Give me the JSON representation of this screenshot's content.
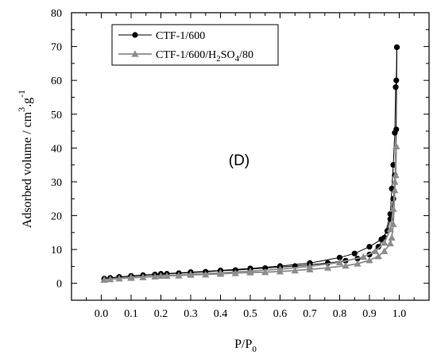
{
  "chart_data": {
    "type": "line",
    "panel_label": "(D)",
    "xlabel": {
      "main": "P/P",
      "sub": "0"
    },
    "ylabel": {
      "main": "Adsorbed volume / cm",
      "sup1": "3",
      "mid": ".g",
      "sup2": "-1"
    },
    "xlim": [
      -0.1,
      1.1
    ],
    "ylim": [
      -5,
      80
    ],
    "x_ticks": [
      0.0,
      0.1,
      0.2,
      0.3,
      0.4,
      0.5,
      0.6,
      0.7,
      0.8,
      0.9,
      1.0
    ],
    "x_tick_labels": [
      "0.0",
      "0.1",
      "0.2",
      "0.3",
      "0.4",
      "0.5",
      "0.6",
      "0.7",
      "0.8",
      "0.9",
      "1.0"
    ],
    "y_ticks": [
      0,
      10,
      20,
      30,
      40,
      50,
      60,
      70,
      80
    ],
    "y_tick_labels": [
      "0",
      "10",
      "20",
      "30",
      "40",
      "50",
      "60",
      "70",
      "80"
    ],
    "grid": false,
    "legend_position": "top-left",
    "legend": [
      {
        "parts": [
          {
            "t": "CTF-1/600"
          }
        ]
      },
      {
        "parts": [
          {
            "t": "CTF-1/600/H"
          },
          {
            "t": "2",
            "sub": true
          },
          {
            "t": "SO"
          },
          {
            "t": "4",
            "sub": true
          },
          {
            "t": "/80"
          }
        ]
      }
    ],
    "series": [
      {
        "marker": "circle",
        "color": "#000000",
        "adsorption": [
          [
            0.01,
            1.3
          ],
          [
            0.03,
            1.6
          ],
          [
            0.06,
            1.9
          ],
          [
            0.1,
            2.1
          ],
          [
            0.14,
            2.4
          ],
          [
            0.18,
            2.6
          ],
          [
            0.22,
            2.8
          ],
          [
            0.26,
            3.0
          ],
          [
            0.3,
            3.2
          ],
          [
            0.35,
            3.4
          ],
          [
            0.4,
            3.7
          ],
          [
            0.45,
            3.9
          ],
          [
            0.5,
            4.2
          ],
          [
            0.55,
            4.5
          ],
          [
            0.6,
            4.8
          ],
          [
            0.65,
            5.1
          ],
          [
            0.7,
            5.5
          ],
          [
            0.76,
            6.0
          ],
          [
            0.82,
            6.7
          ],
          [
            0.86,
            7.3
          ],
          [
            0.9,
            8.5
          ],
          [
            0.93,
            10.8
          ],
          [
            0.95,
            13.5
          ],
          [
            0.97,
            20.5
          ],
          [
            0.975,
            28.0
          ],
          [
            0.98,
            35.0
          ],
          [
            0.985,
            44.5
          ],
          [
            0.988,
            58.0
          ],
          [
            0.99,
            60.0
          ],
          [
            0.992,
            69.8
          ]
        ],
        "desorption": [
          [
            0.992,
            69.8
          ],
          [
            0.99,
            45.5
          ],
          [
            0.985,
            32.0
          ],
          [
            0.98,
            25.0
          ],
          [
            0.97,
            19.0
          ],
          [
            0.96,
            15.5
          ],
          [
            0.94,
            13.0
          ],
          [
            0.9,
            10.8
          ],
          [
            0.85,
            8.8
          ],
          [
            0.8,
            7.6
          ],
          [
            0.7,
            6.0
          ],
          [
            0.6,
            5.1
          ],
          [
            0.5,
            4.4
          ],
          [
            0.4,
            3.8
          ],
          [
            0.3,
            3.3
          ],
          [
            0.2,
            2.8
          ],
          [
            0.1,
            2.2
          ],
          [
            0.01,
            1.4
          ]
        ]
      },
      {
        "marker": "triangle",
        "color": "#8c8c8c",
        "adsorption": [
          [
            0.01,
            1.0
          ],
          [
            0.03,
            1.2
          ],
          [
            0.06,
            1.4
          ],
          [
            0.1,
            1.6
          ],
          [
            0.14,
            1.8
          ],
          [
            0.18,
            2.0
          ],
          [
            0.22,
            2.2
          ],
          [
            0.26,
            2.3
          ],
          [
            0.3,
            2.5
          ],
          [
            0.35,
            2.6
          ],
          [
            0.4,
            2.8
          ],
          [
            0.45,
            3.0
          ],
          [
            0.5,
            3.2
          ],
          [
            0.55,
            3.3
          ],
          [
            0.6,
            3.5
          ],
          [
            0.65,
            3.8
          ],
          [
            0.7,
            4.1
          ],
          [
            0.76,
            4.6
          ],
          [
            0.82,
            5.2
          ],
          [
            0.86,
            5.8
          ],
          [
            0.9,
            6.8
          ],
          [
            0.93,
            8.0
          ],
          [
            0.95,
            9.5
          ],
          [
            0.97,
            11.8
          ],
          [
            0.975,
            13.5
          ],
          [
            0.98,
            17.5
          ],
          [
            0.985,
            27.5
          ],
          [
            0.988,
            32.0
          ],
          [
            0.99,
            40.5
          ]
        ],
        "desorption": [
          [
            0.99,
            40.5
          ],
          [
            0.985,
            30.0
          ],
          [
            0.98,
            22.0
          ],
          [
            0.97,
            16.0
          ],
          [
            0.95,
            12.0
          ],
          [
            0.92,
            9.5
          ],
          [
            0.88,
            7.8
          ],
          [
            0.8,
            6.2
          ],
          [
            0.7,
            5.0
          ],
          [
            0.6,
            4.2
          ],
          [
            0.5,
            3.6
          ],
          [
            0.4,
            3.1
          ],
          [
            0.3,
            2.7
          ],
          [
            0.2,
            2.2
          ],
          [
            0.1,
            1.8
          ],
          [
            0.01,
            1.1
          ]
        ]
      }
    ]
  }
}
